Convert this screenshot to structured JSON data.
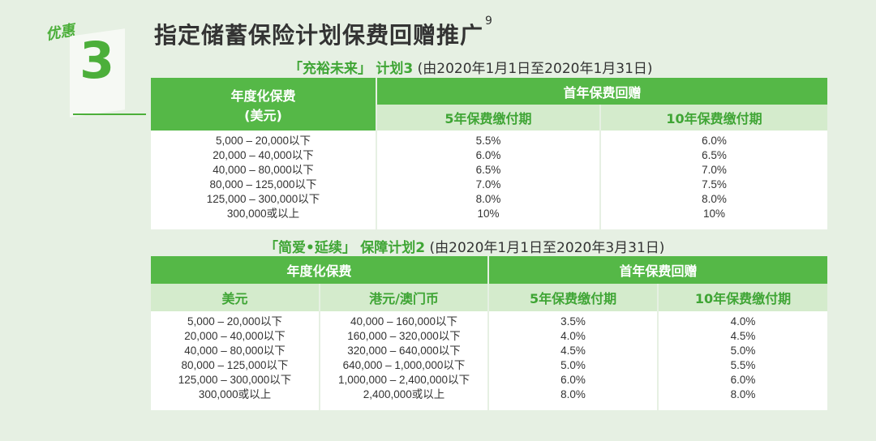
{
  "offer": {
    "tag": "优惠",
    "number": "3"
  },
  "title": "指定储蓄保险计划保费回赠推广",
  "title_note": "9",
  "plan1": {
    "name": "「充裕未来」",
    "suffix": "计划3",
    "period": "(由2020年1月1日至2020年1月31日)",
    "col_premium": "年度化保费",
    "col_premium_unit": "(美元)",
    "col_rebate": "首年保费回赠",
    "col_5yr": "5年保费缴付期",
    "col_10yr": "10年保费缴付期",
    "rows": [
      {
        "range": "5,000 – 20,000以下",
        "r5": "5.5%",
        "r10": "6.0%"
      },
      {
        "range": "20,000 – 40,000以下",
        "r5": "6.0%",
        "r10": "6.5%"
      },
      {
        "range": "40,000 – 80,000以下",
        "r5": "6.5%",
        "r10": "7.0%"
      },
      {
        "range": "80,000 – 125,000以下",
        "r5": "7.0%",
        "r10": "7.5%"
      },
      {
        "range": "125,000 – 300,000以下",
        "r5": "8.0%",
        "r10": "8.0%"
      },
      {
        "range": "300,000或以上",
        "r5": "10%",
        "r10": "10%"
      }
    ]
  },
  "plan2": {
    "name": "「简爱•延续」",
    "suffix": "保障计划2",
    "period": "(由2020年1月1日至2020年3月31日)",
    "col_premium": "年度化保费",
    "col_usd": "美元",
    "col_hkd": "港元/澳门币",
    "col_rebate": "首年保费回赠",
    "col_5yr": "5年保费缴付期",
    "col_10yr": "10年保费缴付期",
    "rows": [
      {
        "usd": "5,000 – 20,000以下",
        "hkd": "40,000 – 160,000以下",
        "r5": "3.5%",
        "r10": "4.0%"
      },
      {
        "usd": "20,000 – 40,000以下",
        "hkd": "160,000 – 320,000以下",
        "r5": "4.0%",
        "r10": "4.5%"
      },
      {
        "usd": "40,000 – 80,000以下",
        "hkd": "320,000 – 640,000以下",
        "r5": "4.5%",
        "r10": "5.0%"
      },
      {
        "usd": "80,000 – 125,000以下",
        "hkd": "640,000 – 1,000,000以下",
        "r5": "5.0%",
        "r10": "5.5%"
      },
      {
        "usd": "125,000 – 300,000以下",
        "hkd": "1,000,000 – 2,400,000以下",
        "r5": "6.0%",
        "r10": "6.0%"
      },
      {
        "usd": "300,000或以上",
        "hkd": "2,400,000或以上",
        "r5": "8.0%",
        "r10": "8.0%"
      }
    ]
  }
}
